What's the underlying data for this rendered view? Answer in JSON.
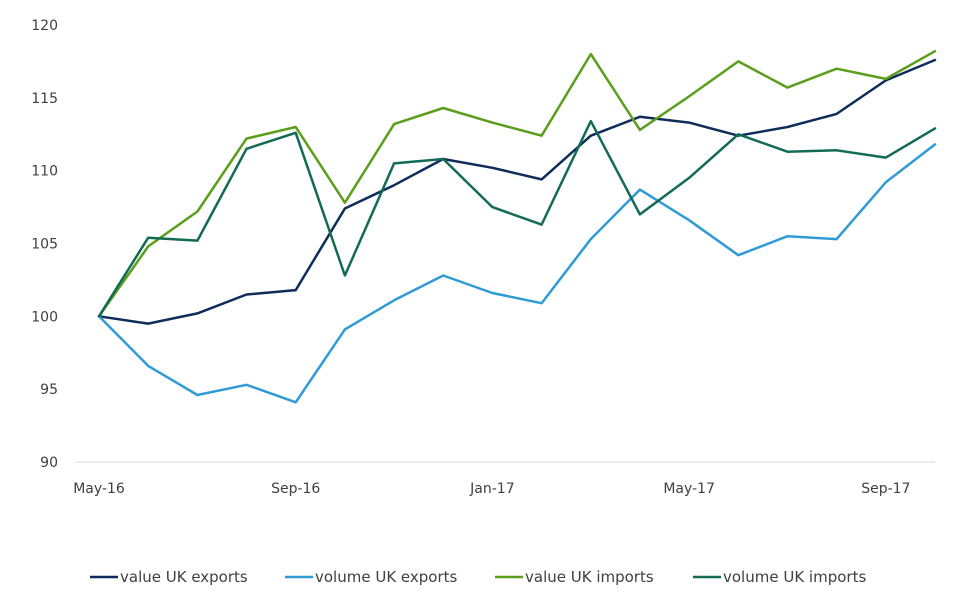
{
  "chart_data": {
    "type": "line",
    "title": "",
    "xlabel": "",
    "ylabel": "",
    "x": [
      "May-16",
      "Jun-16",
      "Jul-16",
      "Aug-16",
      "Sep-16",
      "Oct-16",
      "Nov-16",
      "Dec-16",
      "Jan-17",
      "Feb-17",
      "Mar-17",
      "Apr-17",
      "May-17",
      "Jun-17",
      "Jul-17",
      "Aug-17",
      "Sep-17",
      "Oct-17"
    ],
    "x_tick_labels": [
      {
        "index": 0,
        "label": "May-16"
      },
      {
        "index": 4,
        "label": "Sep-16"
      },
      {
        "index": 8,
        "label": "Jan-17"
      },
      {
        "index": 12,
        "label": "May-17"
      },
      {
        "index": 16,
        "label": "Sep-17"
      }
    ],
    "ylim": [
      90,
      120
    ],
    "y_ticks": [
      90,
      95,
      100,
      105,
      110,
      115,
      120
    ],
    "grid": false,
    "legend_position": "bottom",
    "series": [
      {
        "name": "value UK exports",
        "color": "#0f2d5a",
        "values": [
          100.0,
          99.5,
          100.2,
          101.5,
          101.8,
          107.4,
          109.0,
          110.8,
          110.2,
          109.4,
          112.4,
          113.7,
          113.3,
          112.4,
          113.0,
          113.9,
          116.2,
          117.6
        ]
      },
      {
        "name": "volume UK exports",
        "color": "#2e9bd6",
        "values": [
          100.0,
          96.6,
          94.6,
          95.3,
          94.1,
          99.1,
          101.1,
          102.8,
          101.6,
          100.9,
          105.3,
          108.7,
          106.6,
          104.2,
          105.5,
          105.3,
          109.2,
          111.8
        ]
      },
      {
        "name": "value UK imports",
        "color": "#5a9e1a",
        "values": [
          100.0,
          104.8,
          107.2,
          112.2,
          113.0,
          107.8,
          113.2,
          114.3,
          113.3,
          112.4,
          118.0,
          112.8,
          115.1,
          117.5,
          115.7,
          117.0,
          116.3,
          118.2
        ]
      },
      {
        "name": "volume UK imports",
        "color": "#136b55",
        "values": [
          100.0,
          105.4,
          105.2,
          111.5,
          112.6,
          102.8,
          110.5,
          110.8,
          107.5,
          106.3,
          113.4,
          107.0,
          109.5,
          112.5,
          111.3,
          111.4,
          110.9,
          112.9
        ]
      }
    ]
  }
}
